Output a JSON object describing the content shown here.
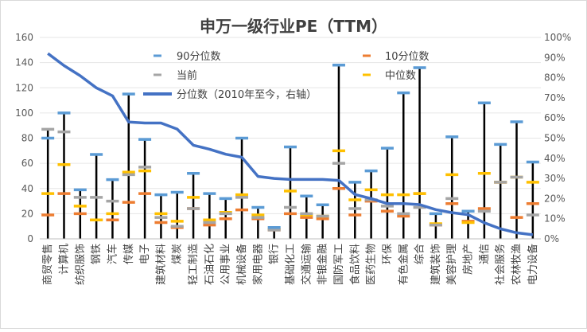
{
  "chart_data": {
    "type": "line",
    "title": "申万一级行业PE（TTM）",
    "categories": [
      "商贸零售",
      "计算机",
      "纺织服饰",
      "钢铁",
      "汽车",
      "传媒",
      "电子",
      "建筑材料",
      "煤炭",
      "轻工制造",
      "石油石化",
      "公用事业",
      "机械设备",
      "家用电器",
      "银行",
      "基础化工",
      "交通运输",
      "非银金融",
      "国防军工",
      "食品饮料",
      "医药生物",
      "环保",
      "有色金属",
      "综合",
      "建筑装饰",
      "美容护理",
      "房地产",
      "通信",
      "社会服务",
      "农林牧渔",
      "电力设备"
    ],
    "ylim_left": [
      0,
      160
    ],
    "ylim_right": [
      0,
      100
    ],
    "yticks_left": [
      "0",
      "20",
      "40",
      "60",
      "80",
      "100",
      "120",
      "140",
      "160"
    ],
    "yticks_right": [
      "0%",
      "10%",
      "20%",
      "30%",
      "40%",
      "50%",
      "60%",
      "70%",
      "80%",
      "90%",
      "100%"
    ],
    "series": [
      {
        "name": "90分位数",
        "color": "#5B9BD5",
        "values": [
          80,
          100,
          39,
          67,
          47,
          115,
          79,
          35,
          37,
          52,
          36,
          32,
          80,
          25,
          9,
          73,
          34,
          27,
          138,
          45,
          54,
          72,
          116,
          136,
          20,
          81,
          22,
          108,
          75,
          93,
          61
        ]
      },
      {
        "name": "10分位数",
        "color": "#ED7D31",
        "values": [
          19,
          36,
          20,
          15,
          15,
          29,
          36,
          13,
          9,
          24,
          11,
          16,
          23,
          16,
          7,
          20,
          17,
          16,
          40,
          19,
          30,
          22,
          18,
          36,
          11,
          28,
          14,
          24,
          45,
          17,
          28
        ]
      },
      {
        "name": "当前",
        "color": "#A5A5A5",
        "values": [
          87,
          85,
          33,
          33,
          30,
          51,
          57,
          17,
          10,
          24,
          13,
          20,
          33,
          17,
          7,
          25,
          20,
          18,
          60,
          24,
          31,
          26,
          20,
          25,
          11,
          32,
          22,
          22,
          45,
          49,
          19
        ]
      },
      {
        "name": "中位数",
        "color": "#FFC000",
        "values": [
          36,
          59,
          26,
          15,
          20,
          53,
          54,
          20,
          14,
          33,
          15,
          21,
          35,
          19,
          8,
          38,
          19,
          18,
          70,
          31,
          39,
          35,
          35,
          36,
          12,
          51,
          13,
          52,
          45,
          49,
          45
        ]
      },
      {
        "name": "分位数（2010年至今，右轴）",
        "color": "#4472C4",
        "axis": "right",
        "values": [
          92,
          86,
          81,
          75,
          71,
          58,
          57.5,
          57.5,
          54.5,
          46.5,
          44.5,
          42,
          40.5,
          31,
          30,
          29.5,
          29.5,
          29.5,
          29,
          22,
          20,
          17.5,
          17.5,
          17,
          14.5,
          13,
          12,
          8,
          5,
          3,
          2
        ]
      }
    ],
    "legend": {
      "p90": "90分位数",
      "p10": "10分位数",
      "current": "当前",
      "median": "中位数",
      "pct_line": "分位数（2010年至今，右轴）"
    }
  }
}
